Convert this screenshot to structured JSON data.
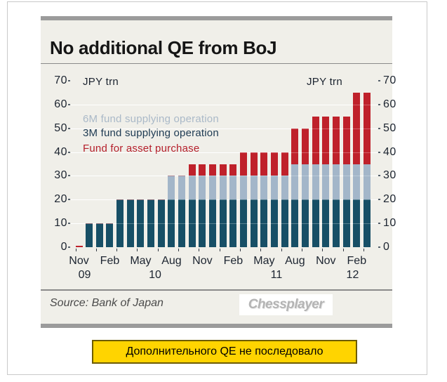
{
  "page": {
    "caption": "Дополнительного QE не последовало"
  },
  "card": {
    "title": "No additional QE from BoJ",
    "unit_label_left": "JPY trn",
    "unit_label_right": "JPY trn",
    "source": "Source: Bank of Japan",
    "watermark": "Chessplayer"
  },
  "colors": {
    "card_background": "#f0efe9",
    "accent_bar": "#9b9b9b",
    "gridline": "#ffffff",
    "axis_text": "#1c2430",
    "series_3m": "#174f66",
    "series_6m": "#a3b6c9",
    "series_asset": "#bf212b",
    "legend_3m_text": "#1d3a52",
    "legend_6m_text": "#aab9c8",
    "legend_asset_text": "#b5202c",
    "caption_background": "#ffd400",
    "caption_border": "#6e5c00"
  },
  "chart_data": {
    "type": "bar",
    "stacked": true,
    "title": "No additional QE from BoJ",
    "unit": "JPY trn",
    "ylim": [
      0,
      70
    ],
    "yticks": [
      0,
      10,
      20,
      30,
      40,
      50,
      60,
      70
    ],
    "grid": "horizontal white lines every 10",
    "legend_position": "upper-left inside plot",
    "categories": [
      "Nov 09",
      "Dec 09",
      "Jan 10",
      "Feb 10",
      "Mar 10",
      "Apr 10",
      "May 10",
      "Jun 10",
      "Jul 10",
      "Aug 10",
      "Sep 10",
      "Oct 10",
      "Nov 10",
      "Dec 10",
      "Jan 11",
      "Feb 11",
      "Mar 11",
      "Apr 11",
      "May 11",
      "Jun 11",
      "Jul 11",
      "Aug 11",
      "Sep 11",
      "Oct 11",
      "Nov 11",
      "Dec 11",
      "Jan 12",
      "Feb 12",
      "Mar 12"
    ],
    "series": [
      {
        "name": "3M fund supplying operation",
        "color": "#174f66",
        "values": [
          0,
          10,
          10,
          10,
          20,
          20,
          20,
          20,
          20,
          20,
          20,
          20,
          20,
          20,
          20,
          20,
          20,
          20,
          20,
          20,
          20,
          20,
          20,
          20,
          20,
          20,
          20,
          20,
          20
        ]
      },
      {
        "name": "6M fund supplying operation",
        "color": "#a3b6c9",
        "values": [
          0,
          0,
          0,
          0,
          0,
          0,
          0,
          0,
          0,
          10,
          10,
          10,
          10,
          10,
          10,
          10,
          10,
          10,
          10,
          10,
          10,
          15,
          15,
          15,
          15,
          15,
          15,
          15,
          15
        ]
      },
      {
        "name": "Fund for asset purchase",
        "color": "#bf212b",
        "values": [
          0.6,
          0,
          0,
          0,
          0,
          0,
          0,
          0,
          0,
          0,
          0,
          5,
          5,
          5,
          5,
          5,
          10,
          10,
          10,
          10,
          10,
          15,
          15,
          20,
          20,
          20,
          20,
          30,
          30
        ]
      }
    ],
    "totals": [
      0.6,
      10,
      10,
      10,
      20,
      20,
      20,
      20,
      20,
      30,
      30,
      35,
      35,
      35,
      35,
      35,
      40,
      40,
      40,
      40,
      40,
      50,
      50,
      55,
      55,
      55,
      55,
      65,
      65
    ],
    "x_month_labels": [
      {
        "label": "Nov",
        "index": 0
      },
      {
        "label": "Feb",
        "index": 3
      },
      {
        "label": "May",
        "index": 6
      },
      {
        "label": "Aug",
        "index": 9
      },
      {
        "label": "Nov",
        "index": 12
      },
      {
        "label": "Feb",
        "index": 15
      },
      {
        "label": "May",
        "index": 18
      },
      {
        "label": "Aug",
        "index": 21
      },
      {
        "label": "Nov",
        "index": 24
      },
      {
        "label": "Feb",
        "index": 27
      }
    ],
    "x_year_labels": [
      {
        "label": "09",
        "index": 0.55
      },
      {
        "label": "10",
        "index": 7.4
      },
      {
        "label": "11",
        "index": 19.2
      },
      {
        "label": "12",
        "index": 26.6
      }
    ]
  }
}
